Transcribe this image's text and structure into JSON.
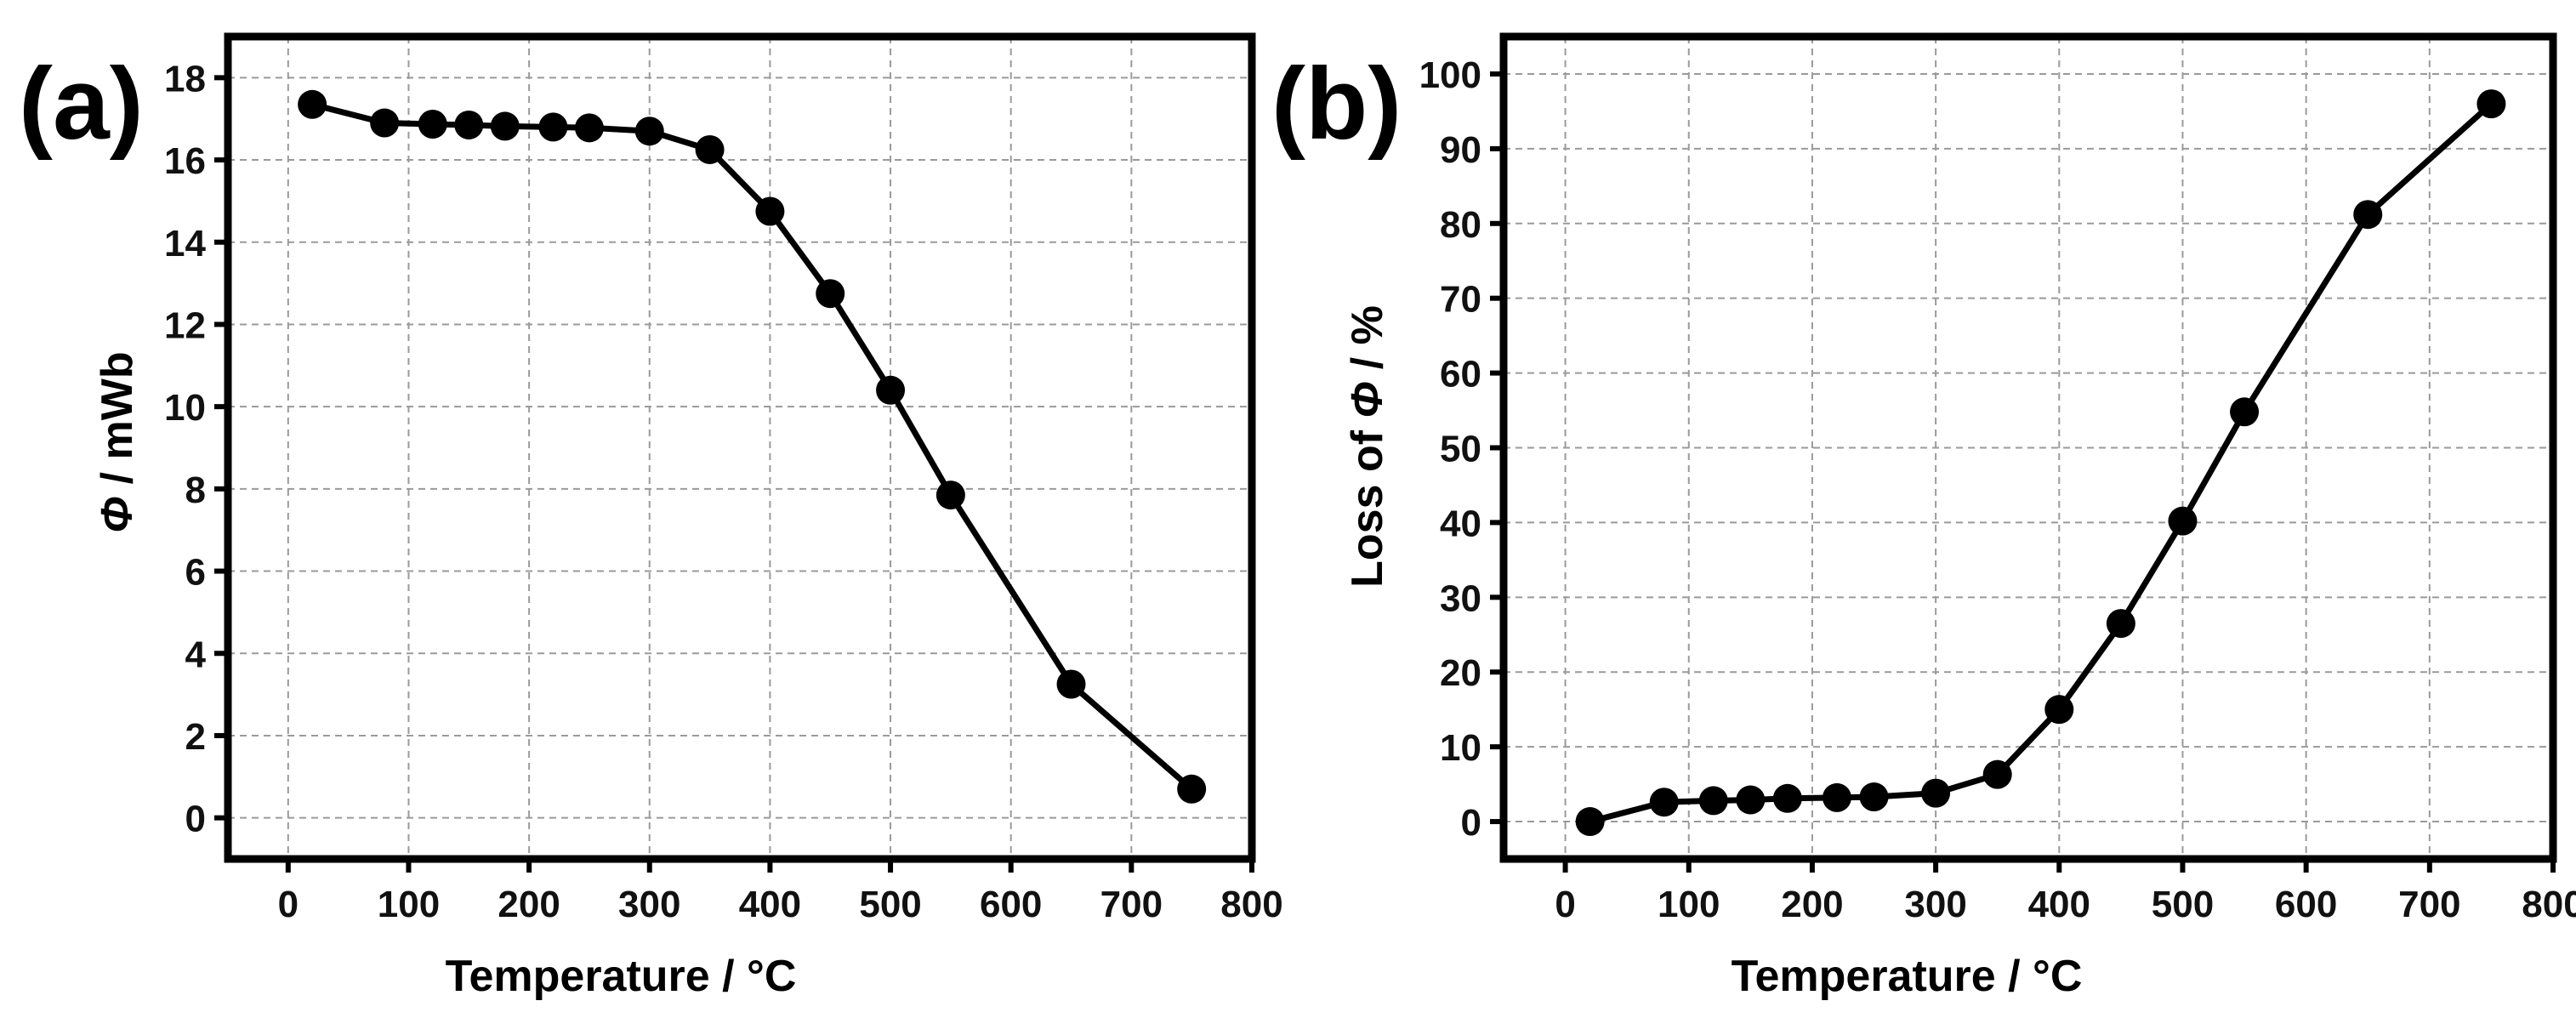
{
  "chart_data": [
    {
      "id": "a",
      "type": "line",
      "panel_label": "(a)",
      "xlabel": "Temperature / °C",
      "ylabel_symbol": "Φ",
      "ylabel_rest": " / mWb",
      "xlim": [
        -50,
        800
      ],
      "ylim": [
        -1,
        19
      ],
      "xticks": [
        0,
        100,
        200,
        300,
        400,
        500,
        600,
        700,
        800
      ],
      "yticks": [
        0,
        2,
        4,
        6,
        8,
        10,
        12,
        14,
        16,
        18
      ],
      "grid": true,
      "series": [
        {
          "name": "Φ",
          "marker": "circle",
          "x": [
            20,
            80,
            120,
            150,
            180,
            220,
            250,
            300,
            350,
            400,
            450,
            500,
            550,
            650,
            750
          ],
          "y": [
            17.35,
            16.9,
            16.87,
            16.85,
            16.82,
            16.8,
            16.78,
            16.7,
            16.25,
            14.75,
            12.75,
            10.4,
            7.85,
            3.25,
            0.7
          ]
        }
      ]
    },
    {
      "id": "b",
      "type": "line",
      "panel_label": "(b)",
      "xlabel": "Temperature / °C",
      "ylabel_prefix": "Loss of ",
      "ylabel_symbol": "Φ",
      "ylabel_rest": " / %",
      "xlim": [
        -50,
        800
      ],
      "ylim": [
        -5,
        105
      ],
      "xticks": [
        0,
        100,
        200,
        300,
        400,
        500,
        600,
        700,
        800
      ],
      "yticks": [
        0,
        10,
        20,
        30,
        40,
        50,
        60,
        70,
        80,
        90,
        100
      ],
      "grid": true,
      "series": [
        {
          "name": "Loss of Φ",
          "marker": "circle",
          "x": [
            20,
            80,
            120,
            150,
            180,
            220,
            250,
            300,
            350,
            400,
            450,
            500,
            550,
            650,
            750
          ],
          "y": [
            0,
            2.6,
            2.8,
            2.9,
            3.1,
            3.2,
            3.3,
            3.8,
            6.3,
            15,
            26.5,
            40.2,
            54.8,
            81.2,
            96
          ]
        }
      ]
    }
  ]
}
